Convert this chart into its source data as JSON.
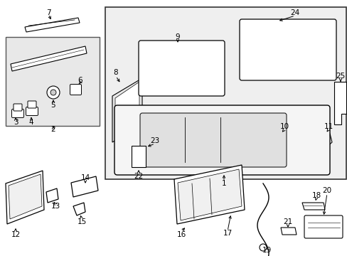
{
  "bg_color": "#ffffff",
  "box_bg": "#f0f0f0",
  "line_color": "#000000",
  "part_fill": "#ffffff",
  "part_stroke": "#000000",
  "label_color": "#000000",
  "font_size": 7.5
}
